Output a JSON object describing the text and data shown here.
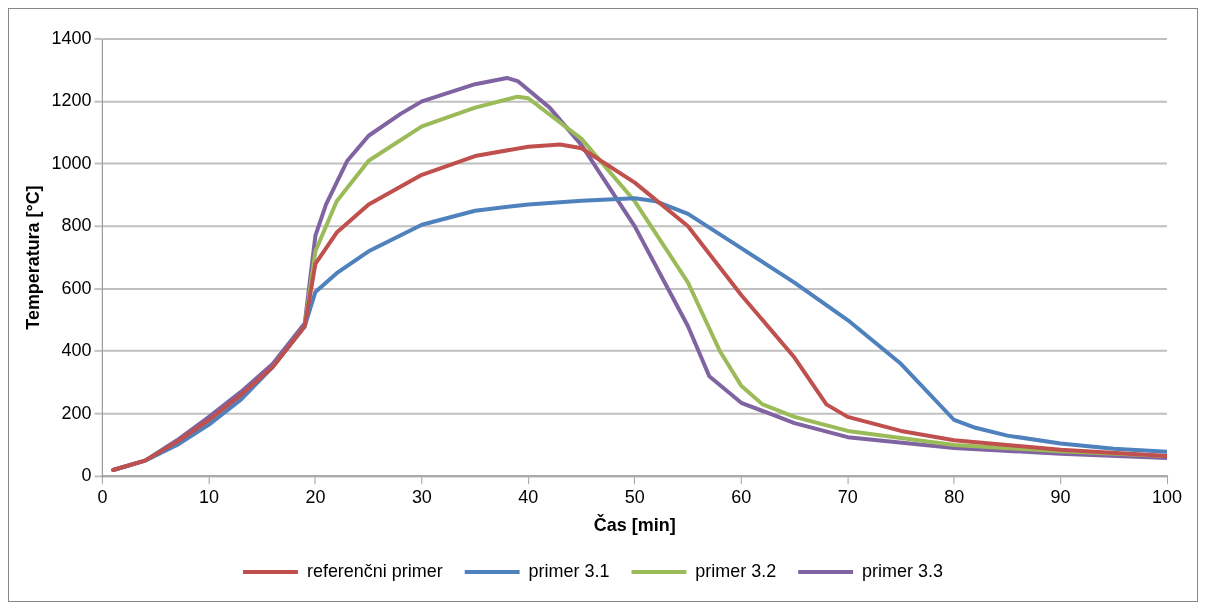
{
  "chart_data": {
    "type": "line",
    "xlabel": "Čas [min]",
    "ylabel": "Temperatura [°C]",
    "xlim": [
      0,
      100
    ],
    "xticks": [
      0,
      10,
      20,
      30,
      40,
      50,
      60,
      70,
      80,
      90,
      100
    ],
    "ylim": [
      0,
      1400
    ],
    "yticks": [
      0,
      200,
      400,
      600,
      800,
      1000,
      1200,
      1400
    ],
    "grid": "y",
    "legend": "bottom",
    "marker": "none",
    "line_style": "solid",
    "series": [
      {
        "name": "referenčni primer",
        "color": "#c0504d",
        "x": [
          1,
          4,
          7,
          10,
          13,
          16,
          19,
          20,
          22,
          25,
          30,
          35,
          40,
          43,
          45,
          50,
          55,
          60,
          65,
          68,
          70,
          75,
          80,
          90,
          100
        ],
        "values": [
          20,
          50,
          110,
          180,
          260,
          350,
          480,
          680,
          780,
          870,
          965,
          1025,
          1055,
          1062,
          1050,
          940,
          800,
          580,
          380,
          230,
          190,
          145,
          115,
          85,
          65
        ]
      },
      {
        "name": "primer 3.1",
        "color": "#4f81bd",
        "x": [
          1,
          4,
          7,
          10,
          13,
          16,
          19,
          20,
          22,
          25,
          30,
          35,
          40,
          45,
          50,
          52,
          55,
          60,
          65,
          70,
          75,
          80,
          82,
          85,
          90,
          95,
          100
        ],
        "values": [
          20,
          50,
          100,
          165,
          245,
          350,
          480,
          590,
          650,
          720,
          805,
          850,
          870,
          882,
          890,
          880,
          840,
          730,
          620,
          500,
          360,
          180,
          155,
          130,
          105,
          88,
          78
        ]
      },
      {
        "name": "primer 3.2",
        "color": "#9bbb59",
        "x": [
          16,
          19,
          20,
          22,
          25,
          30,
          35,
          39,
          40,
          45,
          50,
          55,
          58,
          60,
          62,
          65,
          70,
          80,
          90,
          100
        ],
        "values": [
          350,
          480,
          720,
          880,
          1010,
          1120,
          1180,
          1215,
          1210,
          1080,
          880,
          620,
          400,
          290,
          230,
          190,
          145,
          100,
          80,
          65
        ]
      },
      {
        "name": "primer 3.3",
        "color": "#8064a2",
        "x": [
          1,
          4,
          7,
          10,
          13,
          16,
          19,
          20,
          21,
          23,
          25,
          28,
          30,
          35,
          38,
          39,
          42,
          45,
          50,
          55,
          57,
          60,
          65,
          70,
          80,
          90,
          100
        ],
        "values": [
          20,
          50,
          115,
          190,
          270,
          360,
          490,
          770,
          870,
          1010,
          1090,
          1160,
          1200,
          1255,
          1275,
          1265,
          1180,
          1060,
          800,
          480,
          320,
          235,
          170,
          125,
          90,
          72,
          58
        ]
      }
    ]
  }
}
